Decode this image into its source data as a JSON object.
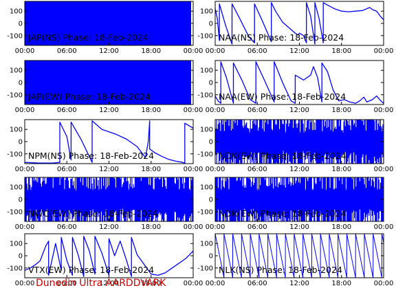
{
  "footer_text": "Dunedin Ultra AARDDVARK",
  "colors": {
    "trace": "#0000ff",
    "axes": "#000000",
    "label": "#000000",
    "footer": "#d00000"
  },
  "chart_data": [
    {
      "type": "line",
      "title": "JAP(NS) Phase: 18-Feb-2024",
      "x_ticks": [
        "00:00",
        "06:00",
        "12:00",
        "18:00",
        "00:00"
      ],
      "x_range_hours": [
        0,
        24
      ],
      "y_ticks": [
        100,
        0,
        -100
      ],
      "ylim": [
        -180,
        180
      ],
      "pattern": "fill",
      "series": [
        {
          "x": [
            0,
            24
          ],
          "y": [
            0,
            0
          ]
        }
      ]
    },
    {
      "type": "line",
      "title": "NAA(NS) Phase: 18-Feb-2024",
      "x_ticks": [
        "00:00",
        "06:00",
        "12:00",
        "18:00",
        "00:00"
      ],
      "x_range_hours": [
        0,
        24
      ],
      "y_ticks": [
        100,
        0,
        -100
      ],
      "ylim": [
        -180,
        180
      ],
      "pattern": "line",
      "series": [
        {
          "x": [
            0.0,
            0.3,
            0.6,
            0.6,
            1.5,
            2.4,
            2.4,
            3.5,
            4.8,
            5.6,
            5.6,
            6.8,
            8.0,
            8.0,
            8.6,
            9.6,
            10.6,
            11.4,
            11.8,
            12.0,
            12.6,
            13.0,
            13.0,
            13.6,
            14.2,
            14.2,
            14.8,
            15.4,
            15.4,
            16.0,
            17.0,
            18.0,
            19.0,
            20.0,
            21.0,
            22.0,
            22.5,
            23.0,
            23.5,
            24.0
          ],
          "y": [
            120,
            40,
            -140,
            160,
            -20,
            -170,
            160,
            40,
            -110,
            -160,
            160,
            10,
            -150,
            170,
            100,
            10,
            -40,
            -80,
            -95,
            -80,
            -100,
            -160,
            170,
            60,
            -170,
            170,
            40,
            -160,
            170,
            150,
            120,
            100,
            95,
            100,
            105,
            130,
            110,
            100,
            60,
            30
          ]
        }
      ]
    },
    {
      "type": "line",
      "title": "JAP(EW) Phase: 18-Feb-2024",
      "x_ticks": [
        "00:00",
        "06:00",
        "12:00",
        "18:00",
        "00:00"
      ],
      "x_range_hours": [
        0,
        24
      ],
      "y_ticks": [
        100,
        0,
        -100
      ],
      "ylim": [
        -180,
        180
      ],
      "pattern": "fill",
      "series": [
        {
          "x": [
            0,
            24
          ],
          "y": [
            0,
            0
          ]
        }
      ]
    },
    {
      "type": "line",
      "title": "NAA(EW) Phase: 18-Feb-2024",
      "x_ticks": [
        "00:00",
        "06:00",
        "12:00",
        "18:00",
        "00:00"
      ],
      "x_range_hours": [
        0,
        24
      ],
      "y_ticks": [
        100,
        0,
        -100
      ],
      "ylim": [
        -180,
        180
      ],
      "pattern": "line",
      "series": [
        {
          "x": [
            0.0,
            0.4,
            0.8,
            0.8,
            1.6,
            2.6,
            2.6,
            3.8,
            5.0,
            5.8,
            5.8,
            7.0,
            8.4,
            8.4,
            9.6,
            10.8,
            11.4,
            11.4,
            12.6,
            13.6,
            14.0,
            14.6,
            15.2,
            15.2,
            16.0,
            16.8,
            17.6,
            18.4,
            19.2,
            20.0,
            20.6,
            21.2,
            21.6,
            22.4,
            23.0,
            23.6,
            24.0
          ],
          "y": [
            -110,
            -150,
            -170,
            170,
            40,
            -170,
            160,
            20,
            -140,
            -170,
            170,
            20,
            -160,
            170,
            0,
            -150,
            -170,
            60,
            20,
            60,
            130,
            40,
            -160,
            160,
            90,
            -60,
            -150,
            -140,
            -160,
            -170,
            -150,
            -120,
            -160,
            -140,
            -110,
            -150,
            -170
          ]
        }
      ]
    },
    {
      "type": "line",
      "title": "NPM(NS) Phase: 18-Feb-2024",
      "x_ticks": [
        "00:00",
        "06:00",
        "12:00",
        "18:00",
        "00:00"
      ],
      "x_range_hours": [
        0,
        24
      ],
      "y_ticks": [
        100,
        0,
        -100
      ],
      "ylim": [
        -180,
        180
      ],
      "pattern": "line",
      "series": [
        {
          "x": [
            0.0,
            2.0,
            4.0,
            5.0,
            5.0,
            6.0,
            6.6,
            6.6,
            8.0,
            9.6,
            9.6,
            11.0,
            12.0,
            13.0,
            14.5,
            16.0,
            16.8,
            17.2,
            17.6,
            17.8,
            17.8,
            18.5,
            19.5,
            20.5,
            21.5,
            22.5,
            22.8,
            22.8,
            24.0
          ],
          "y": [
            -170,
            -175,
            -175,
            -170,
            160,
            40,
            -150,
            160,
            20,
            -170,
            170,
            100,
            80,
            60,
            20,
            -40,
            -100,
            -130,
            0,
            170,
            -60,
            -90,
            -120,
            -145,
            -160,
            -170,
            -175,
            150,
            110
          ]
        }
      ]
    },
    {
      "type": "line",
      "title": "NDK(EW) Phase: 18-Feb-2024",
      "x_ticks": [
        "00:00",
        "06:00",
        "12:00",
        "18:00",
        "00:00"
      ],
      "x_range_hours": [
        0,
        24
      ],
      "y_ticks": [
        100,
        0,
        -100
      ],
      "ylim": [
        -180,
        180
      ],
      "pattern": "noise",
      "series": [
        {
          "x": [
            0,
            24
          ],
          "y": [
            0,
            0
          ]
        }
      ]
    },
    {
      "type": "line",
      "title": "NWC(EW) Phase: 18-Feb-2024",
      "x_ticks": [
        "00:00",
        "06:00",
        "12:00",
        "18:00",
        "00:00"
      ],
      "x_range_hours": [
        0,
        24
      ],
      "y_ticks": [
        100,
        0,
        -100
      ],
      "ylim": [
        -180,
        180
      ],
      "pattern": "noise",
      "series": [
        {
          "x": [
            0,
            24
          ],
          "y": [
            0,
            0
          ]
        }
      ]
    },
    {
      "type": "line",
      "title": "NDK(EW) Phase: 18-Feb-2024",
      "x_ticks": [
        "00:00",
        "06:00",
        "12:00",
        "18:00",
        "00:00"
      ],
      "x_range_hours": [
        0,
        24
      ],
      "y_ticks": [
        100,
        0,
        -100
      ],
      "ylim": [
        -180,
        180
      ],
      "pattern": "noise",
      "series": [
        {
          "x": [
            0,
            24
          ],
          "y": [
            0,
            0
          ]
        }
      ]
    },
    {
      "type": "line",
      "title": "VTX(EW) Phase: 18-Feb-2024",
      "x_ticks": [
        "00:00",
        "06:00",
        "12:00",
        "18:00",
        "00:00"
      ],
      "x_range_hours": [
        0,
        24
      ],
      "y_ticks": [
        100,
        0,
        -100
      ],
      "ylim": [
        -180,
        180
      ],
      "pattern": "line",
      "series": [
        {
          "x": [
            0.0,
            0.8,
            1.6,
            2.2,
            2.6,
            3.0,
            3.4,
            3.4,
            4.4,
            5.2,
            5.2,
            6.0,
            6.8,
            6.8,
            7.6,
            8.4,
            8.4,
            9.2,
            10.0,
            10.0,
            11.0,
            12.0,
            12.0,
            12.8,
            13.6,
            14.4,
            15.2,
            15.2,
            16.0,
            17.0,
            18.0,
            19.0,
            20.0,
            21.0,
            22.0,
            23.0,
            24.0
          ],
          "y": [
            -120,
            -100,
            -70,
            -40,
            20,
            80,
            120,
            -160,
            100,
            -120,
            150,
            -40,
            -160,
            150,
            10,
            -170,
            160,
            40,
            -150,
            160,
            20,
            -160,
            140,
            0,
            120,
            -20,
            -170,
            150,
            10,
            -70,
            -150,
            -160,
            -140,
            -100,
            -60,
            -20,
            40
          ]
        }
      ]
    },
    {
      "type": "line",
      "title": "NLK(NS) Phase: 18-Feb-2024",
      "x_ticks": [
        "00:00",
        "06:00",
        "12:00",
        "18:00",
        "00:00"
      ],
      "x_range_hours": [
        0,
        24
      ],
      "y_ticks": [
        100,
        0,
        -100
      ],
      "ylim": [
        -180,
        180
      ],
      "pattern": "sawtooth",
      "saw_period_hours": 1.25,
      "series": [
        {
          "x": [
            0,
            24
          ],
          "y": [
            180,
            -180
          ]
        }
      ]
    }
  ]
}
